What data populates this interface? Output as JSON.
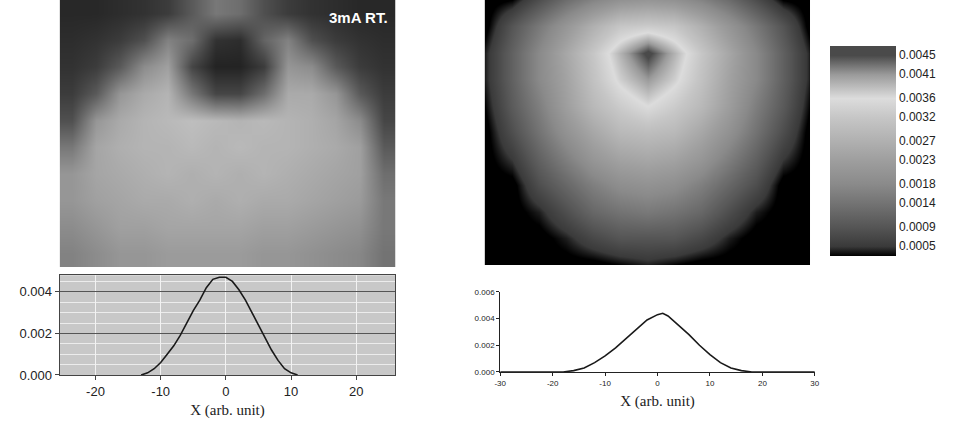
{
  "chart_data": [
    {
      "type": "heatmap",
      "annotations": [
        "3mA RT."
      ],
      "tick_labels": false,
      "zlim": [
        0,
        255
      ],
      "z": [
        [
          40,
          40,
          45,
          50,
          60,
          90,
          120,
          110,
          80,
          60,
          50,
          45,
          40,
          40
        ],
        [
          45,
          50,
          60,
          80,
          130,
          110,
          50,
          45,
          100,
          130,
          80,
          60,
          50,
          45
        ],
        [
          50,
          60,
          90,
          140,
          160,
          70,
          35,
          35,
          60,
          150,
          140,
          90,
          60,
          50
        ],
        [
          60,
          90,
          150,
          170,
          180,
          120,
          70,
          70,
          110,
          170,
          170,
          150,
          90,
          60
        ],
        [
          80,
          150,
          170,
          180,
          185,
          190,
          185,
          180,
          185,
          180,
          175,
          165,
          140,
          70
        ],
        [
          120,
          165,
          175,
          180,
          180,
          185,
          180,
          185,
          180,
          180,
          175,
          170,
          160,
          90
        ],
        [
          150,
          165,
          170,
          175,
          180,
          175,
          180,
          175,
          180,
          175,
          170,
          165,
          160,
          110
        ],
        [
          150,
          160,
          165,
          170,
          170,
          175,
          170,
          175,
          170,
          170,
          165,
          160,
          155,
          120
        ],
        [
          140,
          150,
          160,
          160,
          165,
          165,
          165,
          165,
          160,
          160,
          155,
          150,
          145,
          120
        ],
        [
          130,
          140,
          150,
          150,
          155,
          155,
          155,
          155,
          150,
          150,
          145,
          140,
          135,
          115
        ]
      ]
    },
    {
      "type": "contour",
      "tick_labels": false,
      "colorbar": {
        "range": [
          0.0003,
          0.0047
        ],
        "ticks": [
          0.0045,
          0.0041,
          0.0036,
          0.0032,
          0.0027,
          0.0023,
          0.0018,
          0.0014,
          0.0009,
          0.0005
        ]
      },
      "z": [
        [
          0.0002,
          0.0003,
          0.0008,
          0.0013,
          0.0017,
          0.002,
          0.0021,
          0.002,
          0.0017,
          0.0013,
          0.0008,
          0.0003,
          0.0002
        ],
        [
          0.0002,
          0.0009,
          0.0015,
          0.0021,
          0.0027,
          0.0032,
          0.0033,
          0.0032,
          0.0027,
          0.0021,
          0.0015,
          0.0009,
          0.0002
        ],
        [
          0.0004,
          0.0011,
          0.0018,
          0.0025,
          0.0032,
          0.0039,
          0.0046,
          0.0039,
          0.0032,
          0.0025,
          0.0018,
          0.0011,
          0.0004
        ],
        [
          0.0004,
          0.0011,
          0.0018,
          0.0024,
          0.0031,
          0.0037,
          0.0041,
          0.0037,
          0.0031,
          0.0024,
          0.0018,
          0.0011,
          0.0004
        ],
        [
          0.0003,
          0.001,
          0.0016,
          0.0023,
          0.0029,
          0.0033,
          0.0036,
          0.0033,
          0.0029,
          0.0023,
          0.0016,
          0.001,
          0.0003
        ],
        [
          0.0002,
          0.0008,
          0.0014,
          0.002,
          0.0025,
          0.0029,
          0.003,
          0.0029,
          0.0025,
          0.002,
          0.0014,
          0.0008,
          0.0002
        ],
        [
          0.0002,
          0.0005,
          0.0011,
          0.0016,
          0.0021,
          0.0024,
          0.0025,
          0.0024,
          0.0021,
          0.0016,
          0.0011,
          0.0005,
          0.0002
        ],
        [
          0.0002,
          0.0002,
          0.0008,
          0.0012,
          0.0016,
          0.0019,
          0.002,
          0.0019,
          0.0016,
          0.0012,
          0.0008,
          0.0002,
          0.0002
        ],
        [
          0.0002,
          0.0002,
          0.0004,
          0.0008,
          0.0012,
          0.0014,
          0.0015,
          0.0014,
          0.0012,
          0.0008,
          0.0004,
          0.0002,
          0.0002
        ],
        [
          0.0002,
          0.0002,
          0.0002,
          0.0004,
          0.0007,
          0.0009,
          0.0009,
          0.0009,
          0.0007,
          0.0004,
          0.0002,
          0.0002,
          0.0002
        ],
        [
          0.0002,
          0.0002,
          0.0002,
          0.0002,
          0.0002,
          0.0003,
          0.0004,
          0.0003,
          0.0002,
          0.0002,
          0.0002,
          0.0002,
          0.0002
        ]
      ]
    },
    {
      "type": "line",
      "x_label": "X (arb. unit)",
      "grid": true,
      "color": "#1a1a1a",
      "x": [
        -13,
        -12,
        -11,
        -10,
        -9,
        -8,
        -7,
        -6,
        -5,
        -4,
        -3,
        -2,
        -1,
        0,
        1,
        2,
        3,
        4,
        5,
        6,
        7,
        8,
        9,
        10,
        11
      ],
      "values": [
        0,
        0.0001,
        0.0003,
        0.0006,
        0.001,
        0.0014,
        0.0019,
        0.0025,
        0.0031,
        0.0036,
        0.0042,
        0.0046,
        0.0047,
        0.0047,
        0.0045,
        0.0041,
        0.0036,
        0.003,
        0.0024,
        0.0018,
        0.0012,
        0.0007,
        0.0003,
        0.0001,
        0
      ],
      "xlim": [
        -25.5,
        26
      ],
      "xticks": [
        -20,
        -10,
        0,
        10,
        20
      ],
      "ylim": [
        0,
        0.0048
      ],
      "yticks": [
        {
          "value": 0,
          "label": "0.000"
        },
        {
          "value": 0.002,
          "label": "0.002"
        },
        {
          "value": 0.004,
          "label": "0.004"
        }
      ]
    },
    {
      "type": "line",
      "x_label": "X (arb. unit)",
      "grid": false,
      "color": "#1a1a1a",
      "x": [
        -30,
        -18,
        -16,
        -14,
        -12,
        -10,
        -8,
        -6,
        -4,
        -2,
        0,
        1,
        2,
        4,
        6,
        8,
        10,
        12,
        14,
        16,
        18,
        30
      ],
      "values": [
        0,
        0,
        0.0001,
        0.0003,
        0.0007,
        0.0012,
        0.0018,
        0.0025,
        0.0032,
        0.0039,
        0.0043,
        0.0044,
        0.0042,
        0.0035,
        0.0028,
        0.002,
        0.0013,
        0.0007,
        0.0003,
        0.0001,
        0,
        0
      ],
      "xlim": [
        -30,
        30
      ],
      "xticks": [
        -30,
        -20,
        -10,
        0,
        10,
        20,
        30
      ],
      "ylim": [
        0,
        0.006
      ],
      "yticks": [
        {
          "value": 0,
          "label": "0.000"
        },
        {
          "value": 0.002,
          "label": "0.002"
        },
        {
          "value": 0.004,
          "label": "0.004"
        },
        {
          "value": 0.006,
          "label": "0.006"
        }
      ]
    }
  ]
}
